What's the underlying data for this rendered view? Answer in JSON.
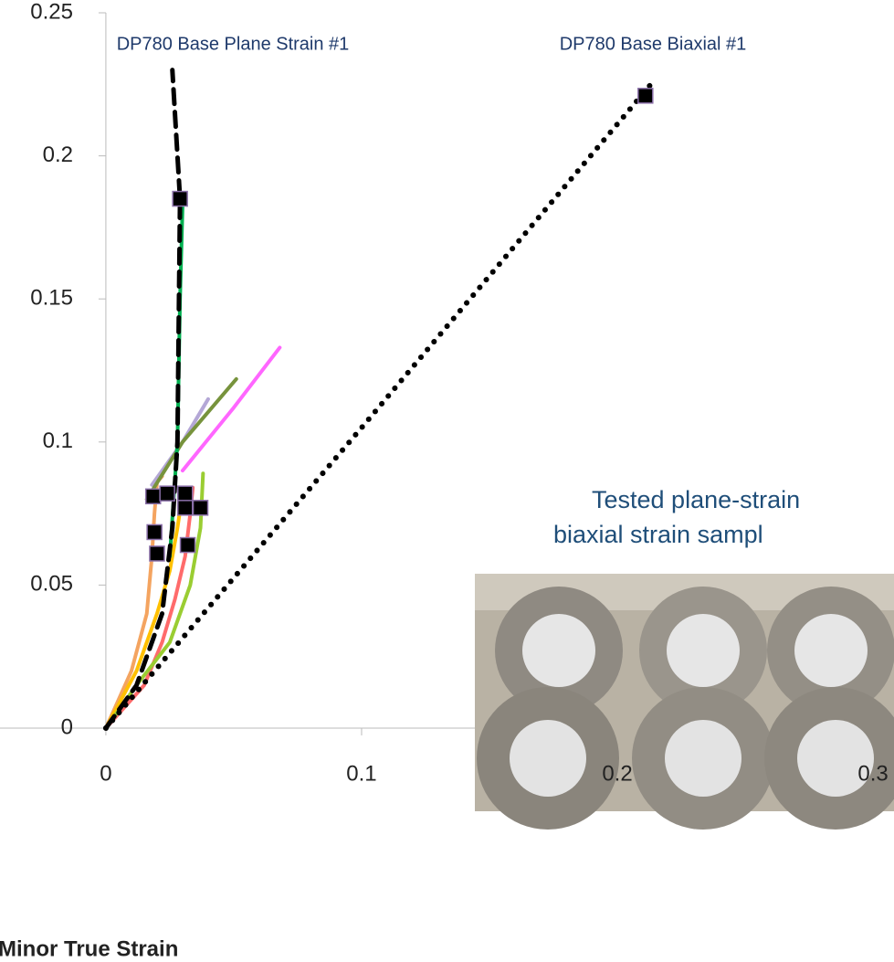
{
  "chart_data": {
    "type": "line",
    "x_label": "Minor True Strain",
    "annotations": [
      "DP780 Base Plane Strain #1",
      "DP780 Base Biaxial #1",
      "Tested plane-strain",
      "biaxial strain sampl"
    ],
    "xlim": [
      -0.0414,
      0.3082
    ],
    "ylim": [
      0,
      0.25
    ],
    "xticks": [
      0,
      0.1,
      0.2,
      0.3
    ],
    "yticks": [
      0,
      0.05,
      0.1,
      0.15,
      0.2,
      0.25
    ],
    "series": [
      {
        "color": "#f4a460",
        "style": "solid",
        "x": [
          0,
          0.01,
          0.016,
          0.018,
          0.019,
          0.02,
          0.022
        ],
        "values": [
          0,
          0.02,
          0.04,
          0.06,
          0.075,
          0.086,
          0.088
        ]
      },
      {
        "color": "#ffc000",
        "style": "solid",
        "x": [
          0,
          0.012,
          0.02,
          0.025,
          0.028,
          0.03
        ],
        "values": [
          0,
          0.02,
          0.04,
          0.055,
          0.07,
          0.082
        ]
      },
      {
        "color": "#ff6b6b",
        "style": "solid",
        "x": [
          0,
          0.015,
          0.022,
          0.027,
          0.031,
          0.033,
          0.034
        ],
        "values": [
          0,
          0.015,
          0.03,
          0.045,
          0.06,
          0.075,
          0.084
        ]
      },
      {
        "color": "#9acd32",
        "style": "solid",
        "x": [
          0,
          0.012,
          0.025,
          0.033,
          0.037,
          0.038
        ],
        "values": [
          0,
          0.015,
          0.03,
          0.05,
          0.07,
          0.089
        ]
      },
      {
        "color": "#b4a7d6",
        "style": "solid",
        "x": [
          0.018,
          0.03,
          0.04
        ],
        "values": [
          0.085,
          0.1,
          0.115
        ]
      },
      {
        "color": "#77933c",
        "style": "solid",
        "x": [
          0.016,
          0.03,
          0.051
        ],
        "values": [
          0.08,
          0.1,
          0.122
        ]
      },
      {
        "color": "#ff66ff",
        "style": "solid",
        "x": [
          0.03,
          0.05,
          0.068
        ],
        "values": [
          0.09,
          0.112,
          0.133
        ]
      },
      {
        "color": "#00b050",
        "style": "solid",
        "x": [
          0.025,
          0.028,
          0.029,
          0.03
        ],
        "values": [
          0.06,
          0.1,
          0.15,
          0.183
        ]
      },
      {
        "color": "#000000",
        "style": "dashed",
        "x": [
          0,
          0.012,
          0.022,
          0.026,
          0.028,
          0.029,
          0.026
        ],
        "values": [
          0,
          0.015,
          0.04,
          0.07,
          0.1,
          0.185,
          0.23
        ]
      },
      {
        "color": "#000000",
        "style": "dotted",
        "x": [
          0,
          0.1,
          0.215
        ],
        "values": [
          0,
          0.105,
          0.227
        ]
      }
    ],
    "markers": {
      "color": "#000000",
      "x": [
        0.0185,
        0.019,
        0.02,
        0.024,
        0.031,
        0.031,
        0.037,
        0.032,
        0.029,
        0.211
      ],
      "values": [
        0.081,
        0.0685,
        0.061,
        0.082,
        0.082,
        0.077,
        0.077,
        0.064,
        0.185,
        0.221
      ]
    }
  }
}
